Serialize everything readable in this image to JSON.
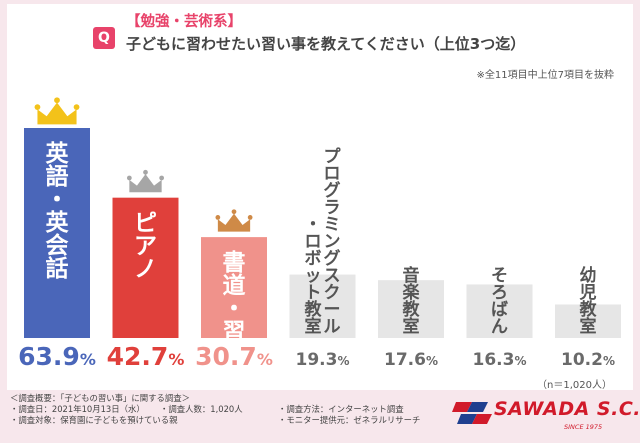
{
  "title": {
    "badge": "Q",
    "line1": "【勉強・芸術系】",
    "line2": "子どもに習わせたい習い事を教えてください（上位3つ迄）"
  },
  "note": "※全11項目中上位7項目を抜粋",
  "sample_size": "（n＝1,020人）",
  "chart_data": {
    "type": "bar",
    "categories": [
      "英語・英会話",
      "ピアノ",
      "書道・習字",
      "プログラミングスクール・ロボット教室",
      "音楽教室",
      "そろばん",
      "幼児教室"
    ],
    "category_lines": [
      [
        "英語・英会話"
      ],
      [
        "ピアノ"
      ],
      [
        "書道・習字"
      ],
      [
        "プログラミングスクール",
        "・ロボット教室"
      ],
      [
        "音楽教室"
      ],
      [
        "そろばん"
      ],
      [
        "幼児教室"
      ]
    ],
    "values": [
      63.9,
      42.7,
      30.7,
      19.3,
      17.6,
      16.3,
      10.2
    ],
    "value_labels": [
      {
        "main": "63.9",
        "unit": "%"
      },
      {
        "main": "42.7",
        "unit": "%"
      },
      {
        "main": "30.7",
        "unit": "%"
      },
      {
        "main": "19.3",
        "unit": "%"
      },
      {
        "main": "17.6",
        "unit": "%"
      },
      {
        "main": "16.3",
        "unit": "%"
      },
      {
        "main": "10.2",
        "unit": "%"
      }
    ],
    "bar_colors": [
      "#4a66b9",
      "#e0403b",
      "#f0928b",
      "#e6e6e6",
      "#e6e6e6",
      "#e6e6e6",
      "#e6e6e6"
    ],
    "value_colors": [
      "#4a66b9",
      "#e0403b",
      "#f0928b",
      "#6a6a6a",
      "#6a6a6a",
      "#6a6a6a",
      "#6a6a6a"
    ],
    "label_colors": [
      "#ffffff",
      "#ffffff",
      "#ffffff",
      "#555555",
      "#555555",
      "#555555",
      "#555555"
    ],
    "crowns": [
      {
        "rank": 1,
        "color": "#f3c21a",
        "icon": "gold-crown-icon"
      },
      {
        "rank": 2,
        "color": "#a6a6a6",
        "icon": "silver-crown-icon"
      },
      {
        "rank": 3,
        "color": "#cf8a47",
        "icon": "bronze-crown-icon"
      }
    ],
    "xlabel": "",
    "ylabel": "",
    "ylim": [
      0,
      70
    ],
    "grid": false
  },
  "footer": {
    "rows": [
      [
        "＜調査概要：「子どもの習い事」に関する調査＞"
      ],
      [
        "・調査日：2021年10月13日（水）",
        "・調査人数：1,020人",
        "・調査方法：インターネット調査"
      ],
      [
        "・調査対象：保育園に子どもを預けている親",
        "",
        "・モニター提供元：ゼネラルリサーチ"
      ]
    ]
  },
  "logo": {
    "name": "SAWADA S.C.",
    "since": "SINCE 1975",
    "colors": {
      "red": "#d11a2a",
      "blue": "#1f3f8f"
    }
  }
}
